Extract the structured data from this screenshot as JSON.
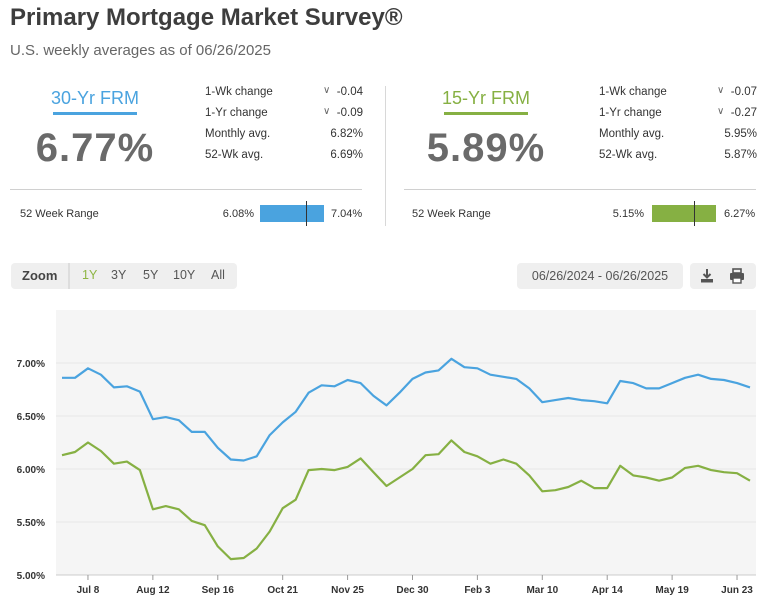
{
  "header": {
    "title": "Primary Mortgage Market Survey®",
    "subtitle": "U.S. weekly averages as of 06/26/2025"
  },
  "frm30": {
    "name": "30-Yr FRM",
    "rate": "6.77%",
    "color": "#4aa3df",
    "stats": [
      {
        "label": "1-Wk change",
        "value": "-0.04",
        "chevron": true
      },
      {
        "label": "1-Yr change",
        "value": "-0.09",
        "chevron": true
      },
      {
        "label": "Monthly avg.",
        "value": "6.82%",
        "chevron": false
      },
      {
        "label": "52-Wk avg.",
        "value": "6.69%",
        "chevron": false
      }
    ],
    "range_label": "52 Week Range",
    "range_low": "6.08%",
    "range_high": "7.04%",
    "range_position": 0.72
  },
  "frm15": {
    "name": "15-Yr FRM",
    "rate": "5.89%",
    "color": "#86b043",
    "stats": [
      {
        "label": "1-Wk change",
        "value": "-0.07",
        "chevron": true
      },
      {
        "label": "1-Yr change",
        "value": "-0.27",
        "chevron": true
      },
      {
        "label": "Monthly avg.",
        "value": "5.95%",
        "chevron": false
      },
      {
        "label": "52-Wk avg.",
        "value": "5.87%",
        "chevron": false
      }
    ],
    "range_label": "52 Week Range",
    "range_low": "5.15%",
    "range_high": "6.27%",
    "range_position": 0.65
  },
  "toolbar": {
    "zoom_label": "Zoom",
    "zoom_options": [
      "1Y",
      "3Y",
      "5Y",
      "10Y",
      "All"
    ],
    "active_zoom": "1Y",
    "date_range": "06/26/2024 - 06/26/2025",
    "download_icon": "download-icon",
    "print_icon": "print-icon"
  },
  "chart_data": {
    "type": "line",
    "ylim": [
      5.0,
      7.5
    ],
    "yticks": [
      "7.00%",
      "6.50%",
      "6.00%",
      "5.50%",
      "5.00%"
    ],
    "ytick_values": [
      7.0,
      6.5,
      6.0,
      5.5,
      5.0
    ],
    "xticks": [
      "Jul 8",
      "Aug 12",
      "Sep 16",
      "Oct 21",
      "Nov 25",
      "Dec 30",
      "Feb 3",
      "Mar 10",
      "Apr 14",
      "May 19",
      "Jun 23"
    ],
    "xtick_index": [
      2,
      7,
      12,
      17,
      22,
      27,
      32,
      37,
      42,
      47,
      52
    ],
    "grid": true,
    "series": [
      {
        "name": "30-Yr FRM",
        "color": "#4aa3df",
        "values": [
          6.86,
          6.86,
          6.95,
          6.89,
          6.77,
          6.78,
          6.73,
          6.47,
          6.49,
          6.46,
          6.35,
          6.35,
          6.2,
          6.09,
          6.08,
          6.12,
          6.32,
          6.44,
          6.54,
          6.72,
          6.79,
          6.78,
          6.84,
          6.81,
          6.69,
          6.6,
          6.72,
          6.85,
          6.91,
          6.93,
          7.04,
          6.96,
          6.95,
          6.89,
          6.87,
          6.85,
          6.76,
          6.63,
          6.65,
          6.67,
          6.65,
          6.64,
          6.62,
          6.83,
          6.81,
          6.76,
          6.76,
          6.81,
          6.86,
          6.89,
          6.85,
          6.84,
          6.81,
          6.77
        ]
      },
      {
        "name": "15-Yr FRM",
        "color": "#86b043",
        "values": [
          6.13,
          6.16,
          6.25,
          6.17,
          6.05,
          6.07,
          5.99,
          5.62,
          5.65,
          5.62,
          5.51,
          5.47,
          5.27,
          5.15,
          5.16,
          5.25,
          5.41,
          5.63,
          5.71,
          5.99,
          6.0,
          5.99,
          6.02,
          6.1,
          5.97,
          5.84,
          5.92,
          6.0,
          6.13,
          6.14,
          6.27,
          6.16,
          6.12,
          6.05,
          6.09,
          6.05,
          5.94,
          5.79,
          5.8,
          5.83,
          5.89,
          5.82,
          5.82,
          6.03,
          5.94,
          5.92,
          5.89,
          5.92,
          6.01,
          6.03,
          5.99,
          5.97,
          5.96,
          5.89
        ]
      }
    ]
  }
}
